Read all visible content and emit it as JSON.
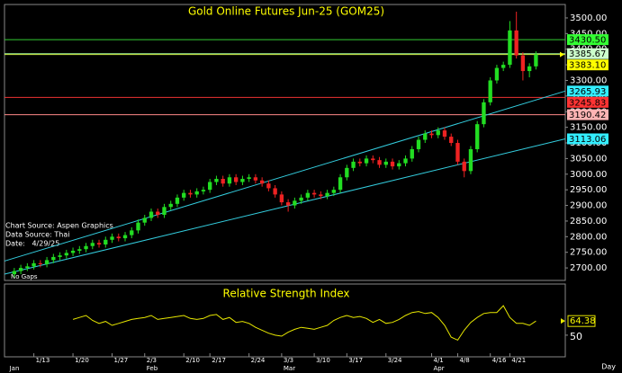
{
  "chart_data": [
    {
      "type": "candlestick",
      "title": "Gold Online Futures Jun-25 (GOM25)",
      "annotations": [
        "Chart Source: Aspen Graphics",
        "Data Source: Thai",
        "Date:   4/29/25",
        "No Gaps"
      ],
      "xlim": [
        -1.5,
        84.5
      ],
      "xticks": [
        {
          "value": 3,
          "label": "1/13"
        },
        {
          "value": 9,
          "label": "1/20"
        },
        {
          "value": 15,
          "label": "1/27"
        },
        {
          "value": 20,
          "label": "2/3"
        },
        {
          "value": 26,
          "label": "2/10"
        },
        {
          "value": 30,
          "label": "2/17"
        },
        {
          "value": 36,
          "label": "2/24"
        },
        {
          "value": 41,
          "label": "3/3"
        },
        {
          "value": 46,
          "label": "3/10"
        },
        {
          "value": 51,
          "label": "3/17"
        },
        {
          "value": 57,
          "label": "3/24"
        },
        {
          "value": 64,
          "label": "4/1"
        },
        {
          "value": 68,
          "label": "4/8"
        },
        {
          "value": 73,
          "label": "4/16"
        },
        {
          "value": 76,
          "label": "4/21"
        }
      ],
      "months": [
        {
          "value": -1,
          "label": "Jan"
        },
        {
          "value": 20,
          "label": "Feb"
        },
        {
          "value": 41,
          "label": "Mar"
        },
        {
          "value": 64,
          "label": "Apr"
        }
      ],
      "period": "Day",
      "ylim": [
        2660,
        3543
      ],
      "yticks": [
        {
          "value": 2700,
          "label": "2700.00"
        },
        {
          "value": 2750,
          "label": "2750.00"
        },
        {
          "value": 2800,
          "label": "2800.00"
        },
        {
          "value": 2850,
          "label": "2850.00"
        },
        {
          "value": 2900,
          "label": "2900.00"
        },
        {
          "value": 2950,
          "label": "2950.00"
        },
        {
          "value": 3000,
          "label": "3000.00"
        },
        {
          "value": 3050,
          "label": "3050.00"
        },
        {
          "value": 3100,
          "label": "3100.00"
        },
        {
          "value": 3150,
          "label": "3150.00"
        },
        {
          "value": 3200,
          "label": "3200.00"
        },
        {
          "value": 3250,
          "label": "3250.00"
        },
        {
          "value": 3300,
          "label": "3300.00"
        },
        {
          "value": 3350,
          "label": "3350.00"
        },
        {
          "value": 3400,
          "label": "3400.00"
        },
        {
          "value": 3450,
          "label": "3450.00"
        },
        {
          "value": 3500,
          "label": "3500.00"
        }
      ],
      "up_color": "#22dd22",
      "down_color": "#ee2222",
      "open": [
        2680,
        2690,
        2700,
        2705,
        2715,
        2712,
        2725,
        2735,
        2740,
        2748,
        2755,
        2760,
        2770,
        2780,
        2775,
        2790,
        2800,
        2795,
        2805,
        2820,
        2845,
        2860,
        2880,
        2870,
        2895,
        2905,
        2925,
        2940,
        2935,
        2945,
        2950,
        2975,
        2985,
        2970,
        2990,
        2975,
        2985,
        2990,
        2980,
        2970,
        2955,
        2935,
        2910,
        2900,
        2915,
        2925,
        2940,
        2935,
        2930,
        2940,
        2950,
        2990,
        3020,
        3040,
        3035,
        3050,
        3045,
        3030,
        3040,
        3025,
        3035,
        3050,
        3080,
        3110,
        3130,
        3125,
        3140,
        3120,
        3100,
        3040,
        3010,
        3080,
        3160,
        3230,
        3300,
        3340,
        3350,
        3460,
        3380,
        3330,
        3345
      ],
      "high": [
        2700,
        2710,
        2715,
        2725,
        2725,
        2735,
        2745,
        2750,
        2758,
        2765,
        2770,
        2780,
        2790,
        2790,
        2800,
        2810,
        2810,
        2815,
        2830,
        2855,
        2870,
        2890,
        2890,
        2905,
        2915,
        2935,
        2950,
        2950,
        2955,
        2960,
        2985,
        2995,
        2995,
        3000,
        3000,
        2995,
        3000,
        3000,
        2990,
        2980,
        2965,
        2945,
        2920,
        2925,
        2935,
        2950,
        2950,
        2945,
        2950,
        2960,
        3000,
        3030,
        3050,
        3050,
        3060,
        3060,
        3055,
        3050,
        3050,
        3045,
        3060,
        3090,
        3120,
        3140,
        3140,
        3150,
        3150,
        3130,
        3110,
        3050,
        3090,
        3170,
        3240,
        3310,
        3350,
        3360,
        3490,
        3520,
        3390,
        3355,
        3393
      ],
      "low": [
        2670,
        2680,
        2690,
        2695,
        2702,
        2702,
        2715,
        2725,
        2730,
        2738,
        2745,
        2750,
        2760,
        2765,
        2765,
        2780,
        2785,
        2785,
        2795,
        2810,
        2835,
        2850,
        2860,
        2860,
        2885,
        2895,
        2915,
        2925,
        2925,
        2935,
        2940,
        2965,
        2960,
        2960,
        2965,
        2965,
        2975,
        2970,
        2960,
        2945,
        2925,
        2900,
        2880,
        2890,
        2905,
        2915,
        2925,
        2920,
        2920,
        2930,
        2940,
        2980,
        3010,
        3025,
        3025,
        3035,
        3020,
        3020,
        3015,
        3015,
        3025,
        3040,
        3070,
        3100,
        3115,
        3115,
        3110,
        3090,
        3030,
        2990,
        3000,
        3070,
        3150,
        3220,
        3290,
        3330,
        3340,
        3370,
        3300,
        3310,
        3335
      ],
      "close": [
        2690,
        2700,
        2705,
        2715,
        2712,
        2725,
        2735,
        2740,
        2748,
        2755,
        2760,
        2770,
        2780,
        2775,
        2790,
        2800,
        2795,
        2805,
        2820,
        2845,
        2860,
        2880,
        2870,
        2895,
        2905,
        2925,
        2940,
        2935,
        2945,
        2950,
        2975,
        2985,
        2970,
        2990,
        2975,
        2985,
        2990,
        2980,
        2970,
        2955,
        2935,
        2910,
        2900,
        2915,
        2925,
        2940,
        2935,
        2930,
        2940,
        2950,
        2990,
        3020,
        3040,
        3035,
        3050,
        3045,
        3030,
        3040,
        3025,
        3035,
        3050,
        3080,
        3110,
        3130,
        3125,
        3140,
        3120,
        3100,
        3040,
        3010,
        3080,
        3160,
        3230,
        3300,
        3340,
        3350,
        3460,
        3380,
        3330,
        3345,
        3383.1
      ],
      "levels": [
        {
          "value": 3430.5,
          "label": "3430.50",
          "color": "#33cc33",
          "tag_color": "#33ff33"
        },
        {
          "value": 3385.67,
          "label": "3385.67",
          "color": "#99ee99",
          "tag_color": "#ccffcc"
        },
        {
          "value": 3383.1,
          "label": "3383.10",
          "color": "#ccee44",
          "tag_color": "#ffff00"
        },
        {
          "value": 3245.83,
          "label": "3245.83",
          "color": "#ee3333",
          "tag_color": "#ff3333"
        },
        {
          "value": 3190.42,
          "label": "3190.42",
          "color": "#ff8888",
          "tag_color": "#ffb4b4"
        }
      ],
      "channels": [
        {
          "x": [
            -1.5,
            84.5
          ],
          "values": [
            2722,
            3265.93
          ],
          "color": "#33ccdd",
          "tag_color": "#33eeff"
        },
        {
          "x": [
            -1.5,
            84.5
          ],
          "values": [
            2680,
            3113.06
          ],
          "color": "#33ccdd",
          "tag_color": "#33eeff"
        }
      ]
    },
    {
      "type": "line",
      "title": "Relative Strength Index",
      "color": "#e8e800",
      "ylim": [
        28,
        102
      ],
      "yticks": [
        50
      ],
      "values": [
        null,
        null,
        null,
        null,
        null,
        null,
        null,
        null,
        null,
        66,
        68,
        70,
        65,
        62,
        64,
        60,
        62,
        64,
        66,
        67,
        68,
        70,
        66,
        67,
        68,
        69,
        70,
        67,
        66,
        67,
        70,
        71,
        66,
        68,
        63,
        64,
        62,
        58,
        55,
        52,
        50,
        49,
        53,
        56,
        58,
        57,
        56,
        58,
        60,
        65,
        68,
        70,
        68,
        69,
        67,
        63,
        66,
        62,
        63,
        66,
        70,
        73,
        74,
        72,
        73,
        68,
        60,
        48,
        45,
        55,
        63,
        68,
        72,
        73,
        73,
        80,
        68,
        62,
        62,
        60,
        64.38
      ]
    }
  ]
}
